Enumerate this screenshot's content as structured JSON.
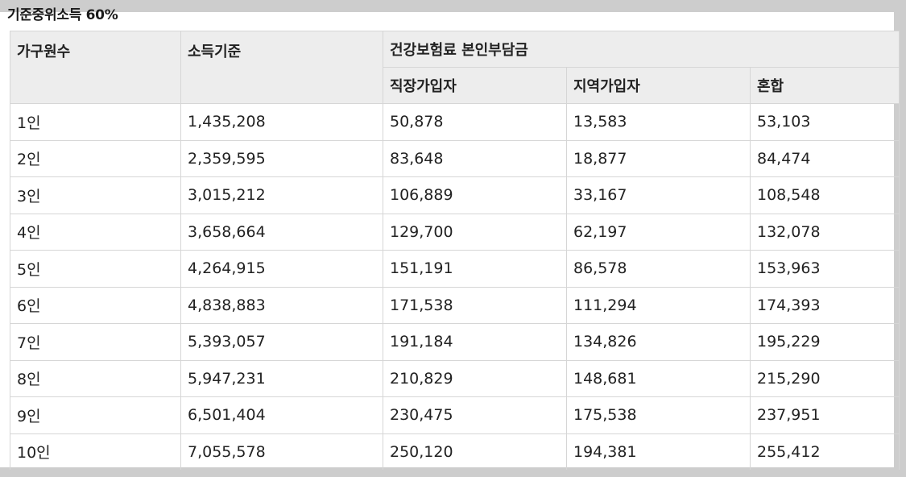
{
  "title": "기준중위소득 60%",
  "header": {
    "col_household": "가구원수",
    "col_income": "소득기준",
    "col_premium_group": "건강보험료 본인부담금",
    "col_employee": "직장가입자",
    "col_regional": "지역가입자",
    "col_mixed": "혼합"
  },
  "rows": [
    {
      "household": "1인",
      "income": "1,435,208",
      "employee": "50,878",
      "regional": "13,583",
      "mixed": "53,103"
    },
    {
      "household": "2인",
      "income": "2,359,595",
      "employee": "83,648",
      "regional": "18,877",
      "mixed": "84,474"
    },
    {
      "household": "3인",
      "income": "3,015,212",
      "employee": "106,889",
      "regional": "33,167",
      "mixed": "108,548"
    },
    {
      "household": "4인",
      "income": "3,658,664",
      "employee": "129,700",
      "regional": "62,197",
      "mixed": "132,078"
    },
    {
      "household": "5인",
      "income": "4,264,915",
      "employee": "151,191",
      "regional": "86,578",
      "mixed": "153,963"
    },
    {
      "household": "6인",
      "income": "4,838,883",
      "employee": "171,538",
      "regional": "111,294",
      "mixed": "174,393"
    },
    {
      "household": "7인",
      "income": "5,393,057",
      "employee": "191,184",
      "regional": "134,826",
      "mixed": "195,229"
    },
    {
      "household": "8인",
      "income": "5,947,231",
      "employee": "210,829",
      "regional": "148,681",
      "mixed": "215,290"
    },
    {
      "household": "9인",
      "income": "6,501,404",
      "employee": "230,475",
      "regional": "175,538",
      "mixed": "237,951"
    },
    {
      "household": "10인",
      "income": "7,055,578",
      "employee": "250,120",
      "regional": "194,381",
      "mixed": "255,412"
    }
  ]
}
